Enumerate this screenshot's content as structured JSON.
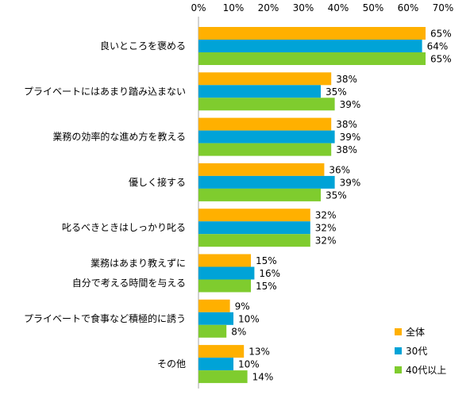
{
  "chart_data": {
    "type": "bar",
    "orientation": "horizontal",
    "xlim": [
      0,
      70
    ],
    "x_ticks": [
      "0%",
      "10%",
      "20%",
      "30%",
      "40%",
      "50%",
      "60%",
      "70%"
    ],
    "x_tick_values": [
      0,
      10,
      20,
      30,
      40,
      50,
      60,
      70
    ],
    "x_axis_position": "top",
    "grid": false,
    "legend": "bottom-right",
    "categories": [
      [
        "良いところを褒める"
      ],
      [
        "プライベートにはあまり踏み込まない"
      ],
      [
        "業務の効率的な進め方を教える"
      ],
      [
        "優しく接する"
      ],
      [
        "叱るべきときはしっかり叱る"
      ],
      [
        "業務はあまり教えずに",
        "自分で考える時間を与える"
      ],
      [
        "プライベートで食事など積極的に誘う"
      ],
      [
        "その他"
      ]
    ],
    "series": [
      {
        "name": "全体",
        "color": "#FFB000",
        "values": [
          65,
          38,
          38,
          36,
          32,
          15,
          9,
          13
        ],
        "labels": [
          "65%",
          "38%",
          "38%",
          "36%",
          "32%",
          "15%",
          "9%",
          "13%"
        ]
      },
      {
        "name": "30代",
        "color": "#00A3D7",
        "values": [
          64,
          35,
          39,
          39,
          32,
          16,
          10,
          10
        ],
        "labels": [
          "64%",
          "35%",
          "39%",
          "39%",
          "32%",
          "16%",
          "10%",
          "10%"
        ]
      },
      {
        "name": "40代以上",
        "color": "#7FCC2E",
        "values": [
          65,
          39,
          38,
          35,
          32,
          15,
          8,
          14
        ],
        "labels": [
          "65%",
          "39%",
          "38%",
          "35%",
          "32%",
          "15%",
          "8%",
          "14%"
        ]
      }
    ]
  }
}
